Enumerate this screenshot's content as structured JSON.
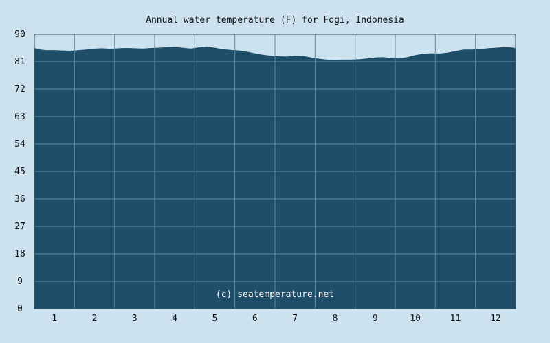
{
  "chart_data": {
    "type": "area",
    "title": "Annual water temperature (F) for Fogi, Indonesia",
    "credit": "(c) seatemperature.net",
    "xlabel": "",
    "ylabel": "",
    "ylim": [
      0,
      90
    ],
    "yticks": [
      "0",
      "9",
      "18",
      "27",
      "36",
      "45",
      "54",
      "63",
      "72",
      "81",
      "90"
    ],
    "months": [
      "1",
      "2",
      "3",
      "4",
      "5",
      "6",
      "7",
      "8",
      "9",
      "10",
      "11",
      "12"
    ],
    "grid": true,
    "colors": {
      "fill": "#1f4e69",
      "background": "#cce3ef",
      "grid": "#5f8aa3"
    },
    "series": [
      {
        "x": [
          0.0,
          0.15,
          0.3,
          0.5,
          0.7,
          0.9,
          1.1,
          1.3,
          1.5,
          1.7,
          1.9,
          2.1,
          2.3,
          2.5,
          2.7,
          2.9,
          3.1,
          3.3,
          3.5,
          3.7,
          3.9,
          4.1,
          4.3,
          4.5,
          4.7,
          4.9,
          5.1,
          5.3,
          5.5,
          5.7,
          5.9,
          6.1,
          6.3,
          6.5,
          6.7,
          6.9,
          7.1,
          7.3,
          7.5,
          7.7,
          7.9,
          8.1,
          8.3,
          8.5,
          8.7,
          8.9,
          9.1,
          9.3,
          9.5,
          9.7,
          9.9,
          10.1,
          10.3,
          10.5,
          10.7,
          10.9,
          11.1,
          11.3,
          11.5,
          11.7,
          11.9,
          12.0
        ],
        "values": [
          85.5,
          85.0,
          84.8,
          84.8,
          84.7,
          84.6,
          84.8,
          85.0,
          85.3,
          85.4,
          85.2,
          85.4,
          85.5,
          85.4,
          85.3,
          85.5,
          85.6,
          85.8,
          85.9,
          85.6,
          85.3,
          85.7,
          86.0,
          85.6,
          85.1,
          84.9,
          84.7,
          84.3,
          83.8,
          83.3,
          83.0,
          82.8,
          82.7,
          83.0,
          82.9,
          82.4,
          82.0,
          81.7,
          81.6,
          81.7,
          81.7,
          81.8,
          82.1,
          82.4,
          82.5,
          82.2,
          82.1,
          82.5,
          83.2,
          83.6,
          83.8,
          83.7,
          84.0,
          84.5,
          85.0,
          85.0,
          85.1,
          85.4,
          85.6,
          85.8,
          85.7,
          85.4
        ]
      }
    ]
  }
}
